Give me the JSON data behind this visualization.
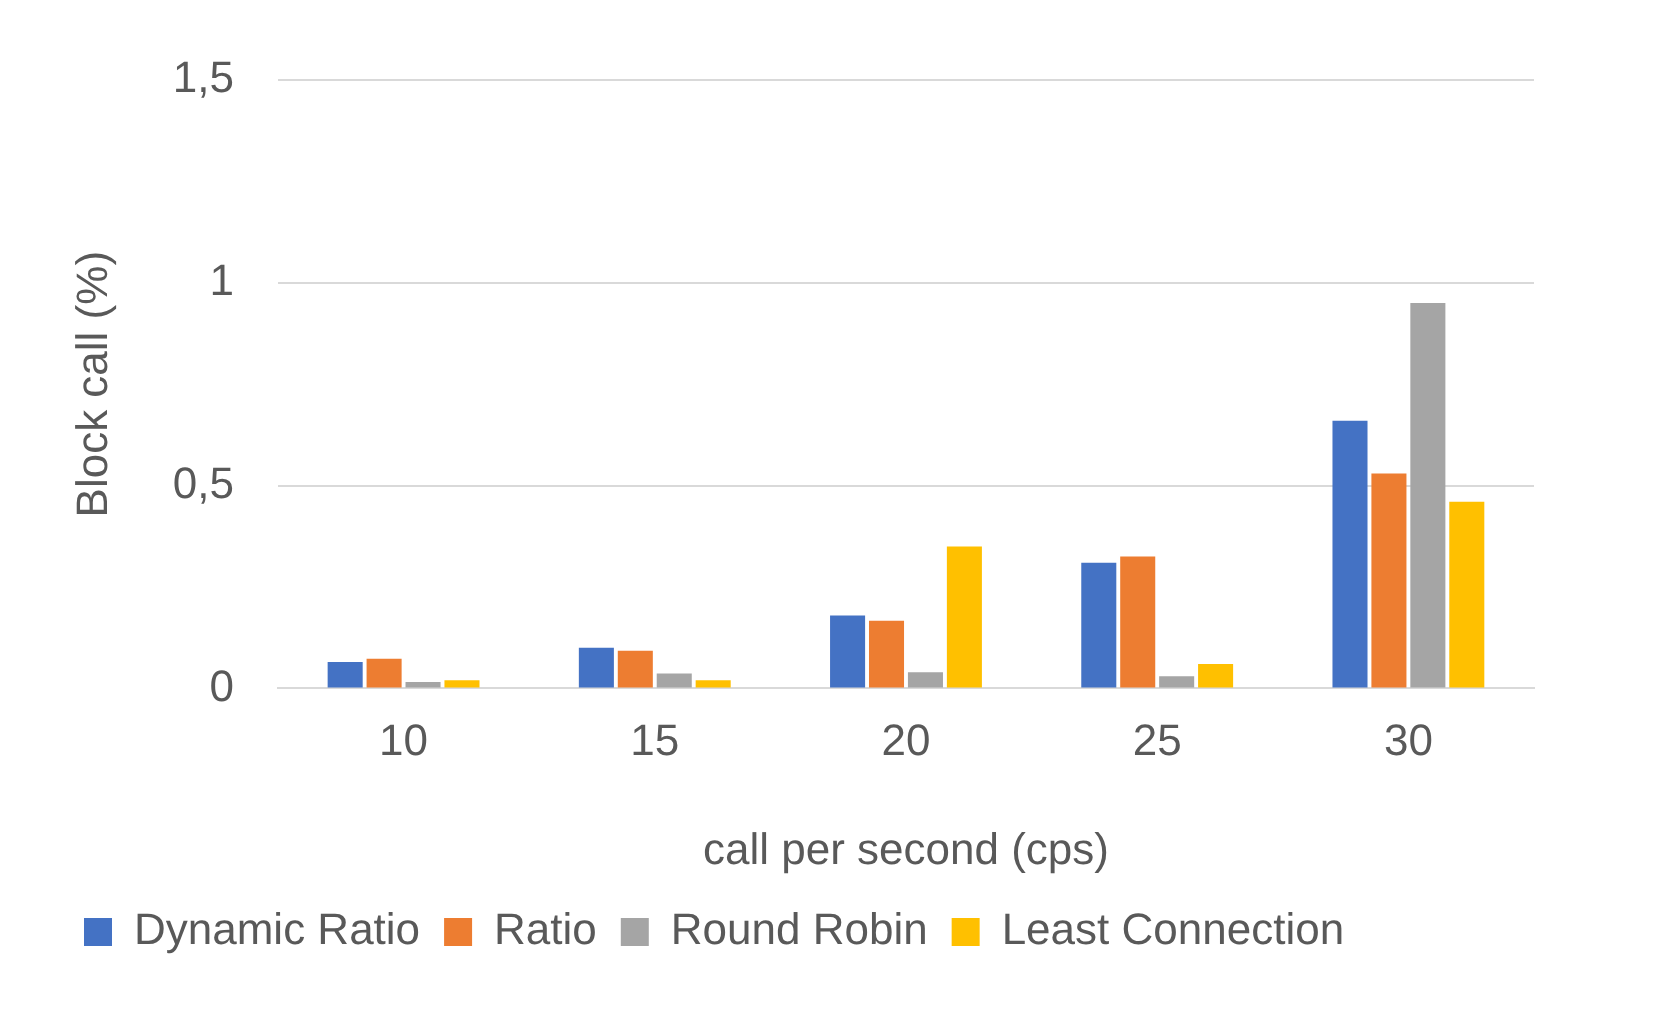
{
  "chart_data": {
    "type": "bar",
    "xlabel": "call per second (cps)",
    "ylabel": "Block call (%)",
    "categories": [
      "10",
      "15",
      "20",
      "25",
      "30"
    ],
    "series": [
      {
        "name": "Dynamic Ratio",
        "color": "#4472c4",
        "values": [
          0.065,
          0.1,
          0.18,
          0.31,
          0.66
        ]
      },
      {
        "name": "Ratio",
        "color": "#ed7d31",
        "values": [
          0.073,
          0.093,
          0.167,
          0.325,
          0.53
        ]
      },
      {
        "name": "Round Robin",
        "color": "#a5a5a5",
        "values": [
          0.016,
          0.037,
          0.04,
          0.03,
          0.95
        ]
      },
      {
        "name": "Least Connection",
        "color": "#ffc000",
        "values": [
          0.02,
          0.02,
          0.35,
          0.06,
          0.46
        ]
      }
    ],
    "ylim": [
      0,
      1.5
    ],
    "yticks": [
      0,
      {
        "value": 0.5,
        "label": "0,5"
      },
      1,
      {
        "value": 1.5,
        "label": "1,5"
      }
    ],
    "grid": "y",
    "legend": "bottom"
  }
}
